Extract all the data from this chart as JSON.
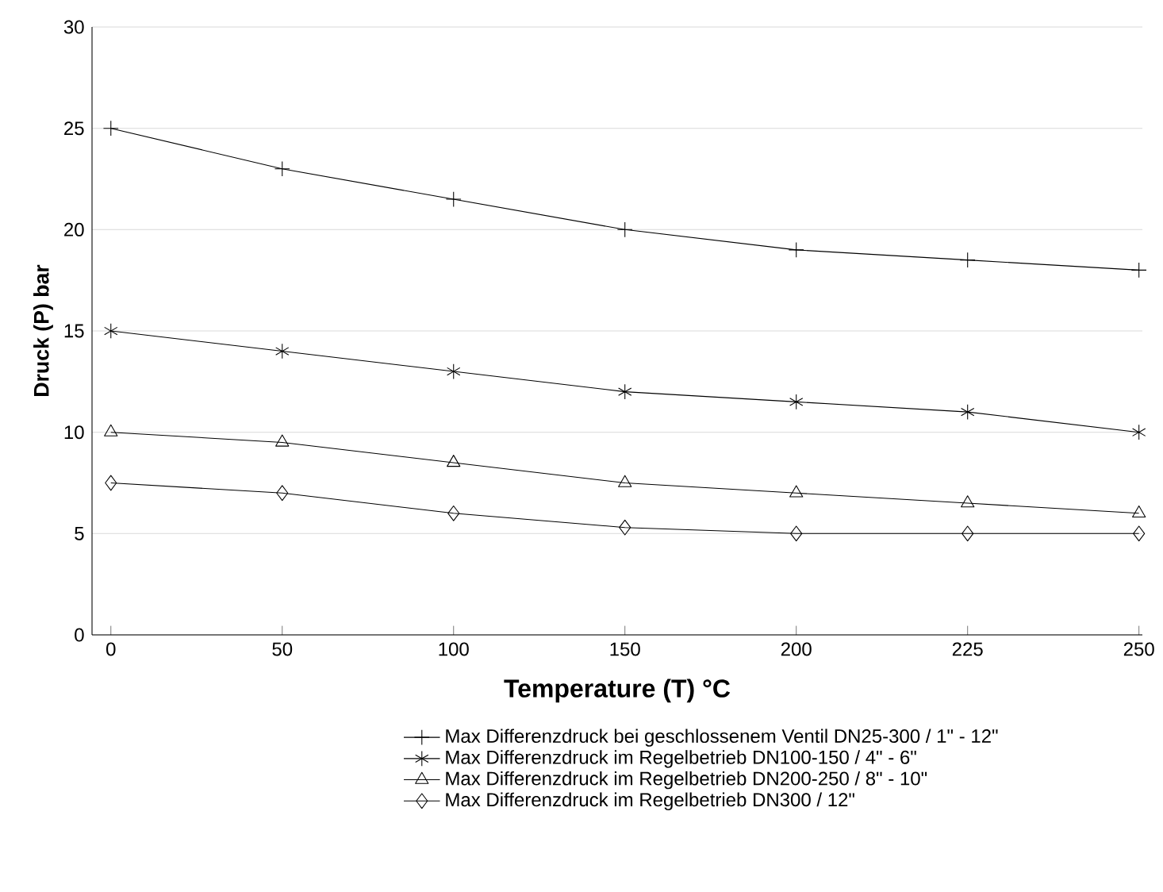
{
  "chart_data": {
    "type": "line",
    "xlabel": "Temperature (T) °C",
    "ylabel": "Druck (P) bar",
    "categories": [
      "0",
      "50",
      "100",
      "150",
      "200",
      "225",
      "250"
    ],
    "ylim": [
      0,
      30
    ],
    "yticks": [
      0,
      5,
      10,
      15,
      20,
      25,
      30
    ],
    "grid": "y",
    "legend": "bottom",
    "line_style": "solid",
    "series": [
      {
        "name": "Max Differenzdruck bei geschlossenem Ventil DN25-300 / 1\" - 12\"",
        "color": "#000000",
        "marker": "cross",
        "values": [
          25,
          23,
          21.5,
          20,
          19,
          18.5,
          18
        ]
      },
      {
        "name": "Max Differenzdruck im Regelbetrieb DN100-150 / 4\" - 6\"",
        "color": "#000000",
        "marker": "cross",
        "values": [
          15,
          14,
          13,
          12,
          11.5,
          11,
          10
        ]
      },
      {
        "name": "Max Differenzdruck im Regelbetrieb DN200-250 / 8\" - 10\"",
        "color": "#000000",
        "marker": "triangle",
        "values": [
          10,
          9.5,
          8.5,
          7.5,
          7,
          6.5,
          6
        ]
      },
      {
        "name": "Max Differenzdruck im Regelbetrieb DN300 / 12\"",
        "color": "#000000",
        "marker": "diamond",
        "values": [
          7.5,
          7,
          6,
          5.3,
          5,
          5,
          5
        ]
      }
    ]
  }
}
